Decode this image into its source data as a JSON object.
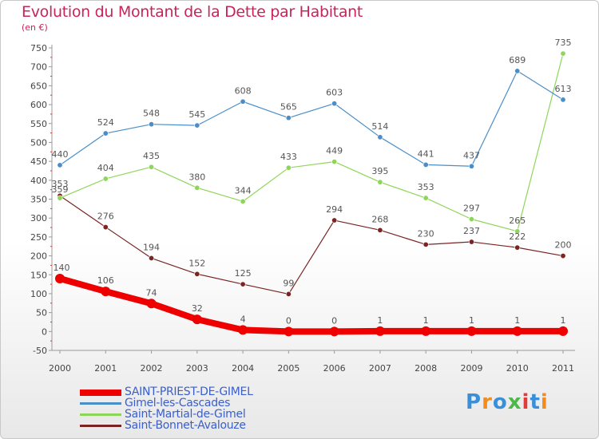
{
  "title": "Evolution du Montant de la Dette par Habitant",
  "subtitle": "(en €)",
  "logo": {
    "text": "Proxiti",
    "colors": [
      "#3a8fd9",
      "#f28c1e",
      "#3a8fd9",
      "#4cb848",
      "#e23b3b",
      "#3a8fd9",
      "#f28c1e"
    ]
  },
  "chart_data": {
    "type": "line",
    "x": [
      "2000",
      "2001",
      "2002",
      "2003",
      "2004",
      "2005",
      "2006",
      "2007",
      "2008",
      "2009",
      "2010",
      "2011"
    ],
    "ylim": [
      -50,
      750
    ],
    "yticks": [
      -50,
      0,
      50,
      100,
      150,
      200,
      250,
      300,
      350,
      400,
      450,
      500,
      550,
      600,
      650,
      700,
      750
    ],
    "grid": false,
    "legend_position": "bottom-left",
    "series": [
      {
        "name": "SAINT-PRIEST-DE-GIMEL",
        "color": "#ee0000",
        "values": [
          140,
          106,
          74,
          32,
          4,
          0,
          0,
          1,
          1,
          1,
          1,
          1
        ],
        "bold": true
      },
      {
        "name": "Gimel-les-Cascades",
        "color": "#4a8ec9",
        "values": [
          440,
          524,
          548,
          545,
          608,
          565,
          603,
          514,
          441,
          437,
          689,
          613
        ]
      },
      {
        "name": "Saint-Martial-de-Gimel",
        "color": "#8ed65a",
        "values": [
          353,
          404,
          435,
          380,
          344,
          433,
          449,
          395,
          353,
          297,
          265,
          735
        ]
      },
      {
        "name": "Saint-Bonnet-Avalouze",
        "color": "#7a2424",
        "values": [
          359,
          276,
          194,
          152,
          125,
          99,
          294,
          268,
          230,
          237,
          222,
          200
        ]
      }
    ]
  }
}
